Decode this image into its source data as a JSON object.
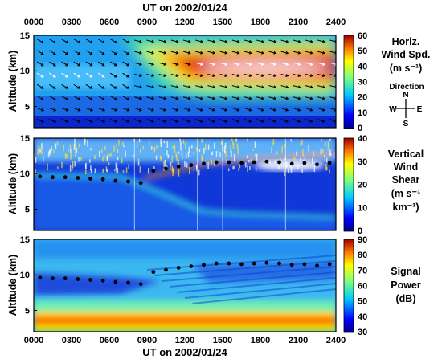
{
  "figure": {
    "top_xlabel": "UT on 2002/01/24",
    "bottom_xlabel": "UT on 2002/01/24",
    "x_ticks": [
      "0000",
      "0300",
      "0600",
      "0900",
      "1200",
      "1500",
      "1800",
      "2100",
      "2400"
    ]
  },
  "chart_data": [
    {
      "type": "heatmap",
      "panel": "horizontal-wind-speed",
      "ylabel": "Altitude (km)",
      "xlim": [
        0,
        24
      ],
      "ylim": [
        2,
        15
      ],
      "y_ticks": [
        "15",
        "10",
        "5"
      ],
      "colorbar": {
        "label_lines": [
          "Horiz.",
          "Wind Spd.",
          "(m s⁻¹)"
        ],
        "ticks": [
          "60",
          "50",
          "40",
          "30",
          "20",
          "10",
          "0"
        ],
        "range": [
          0,
          60
        ]
      },
      "direction_legend": {
        "title": "Direction",
        "n": "N",
        "s": "S",
        "e": "E",
        "w": "W"
      },
      "overlay": "wind direction arrows",
      "jet_core": {
        "x_start_hours": 9,
        "x_end_hours": 24,
        "altitude_km": 10.5,
        "max_speed_ms": 60
      }
    },
    {
      "type": "heatmap",
      "panel": "vertical-wind-shear",
      "ylabel": "Altitude (km)",
      "xlim": [
        0,
        24
      ],
      "ylim": [
        2,
        15
      ],
      "y_ticks": [
        "15",
        "10",
        "5"
      ],
      "colorbar": {
        "label_lines": [
          "Vertical",
          "Wind",
          "Shear",
          "(m s⁻¹",
          "km⁻¹)"
        ],
        "ticks": [
          "40",
          "30",
          "20",
          "10",
          "0"
        ],
        "range": [
          0,
          40
        ]
      },
      "tropopause_markers": {
        "x_hours": [
          0,
          1,
          2,
          3,
          4,
          5,
          6,
          7,
          8,
          9,
          10,
          11,
          12,
          13,
          14,
          15,
          16,
          17,
          18,
          19,
          20,
          21,
          22,
          23
        ],
        "altitude_km": [
          9.6,
          9.5,
          9.5,
          9.4,
          9.3,
          9.2,
          9.0,
          8.9,
          8.7,
          10.4,
          10.7,
          11.0,
          11.2,
          11.4,
          11.6,
          11.6,
          11.5,
          11.6,
          11.7,
          11.6,
          11.4,
          11.5,
          11.3,
          11.5
        ]
      }
    },
    {
      "type": "heatmap",
      "panel": "signal-power",
      "ylabel": "Altitude (km)",
      "xlim": [
        0,
        24
      ],
      "ylim": [
        2,
        15
      ],
      "y_ticks": [
        "15",
        "10",
        "5"
      ],
      "colorbar": {
        "label_lines": [
          "Signal",
          "Power",
          "(dB)"
        ],
        "ticks": [
          "90",
          "80",
          "70",
          "60",
          "50",
          "40",
          "30"
        ],
        "range": [
          30,
          90
        ]
      },
      "tropopause_markers": {
        "x_hours": [
          0,
          1,
          2,
          3,
          4,
          5,
          6,
          7,
          8,
          9,
          10,
          11,
          12,
          13,
          14,
          15,
          16,
          17,
          18,
          19,
          20,
          21,
          22,
          23
        ],
        "altitude_km": [
          9.6,
          9.5,
          9.5,
          9.4,
          9.3,
          9.2,
          9.0,
          8.9,
          8.7,
          10.4,
          10.7,
          11.0,
          11.2,
          11.4,
          11.6,
          11.6,
          11.5,
          11.6,
          11.7,
          11.6,
          11.4,
          11.5,
          11.3,
          11.5
        ]
      }
    }
  ]
}
